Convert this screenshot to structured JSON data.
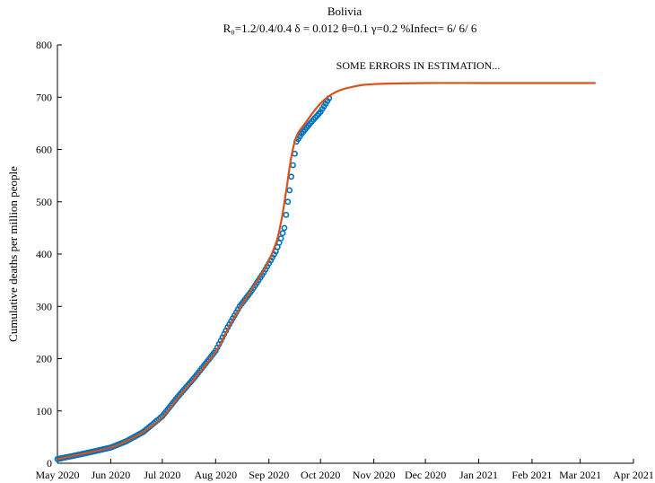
{
  "chart_data": {
    "type": "scatter",
    "title": "Bolivia",
    "subtitle": "R₀=1.2/0.4/0.4  δ = 0.012  θ=0.1  γ=0.2  %Infect= 6/ 6/ 6",
    "annotation": "SOME ERRORS IN ESTIMATION...",
    "xlabel": "",
    "ylabel": "Cumulative deaths per million people",
    "xlim": [
      "2020-05-01",
      "2021-04-01"
    ],
    "ylim": [
      0,
      800
    ],
    "x_ticks": [
      "May 2020",
      "Jun 2020",
      "Jul 2020",
      "Aug 2020",
      "Sep 2020",
      "Oct 2020",
      "Nov 2020",
      "Dec 2020",
      "Jan 2021",
      "Feb 2021",
      "Mar 2021",
      "Apr 2021"
    ],
    "y_ticks": [
      0,
      100,
      200,
      300,
      400,
      500,
      600,
      700,
      800
    ],
    "grid": false,
    "series": [
      {
        "kind": "observed",
        "style": "circle-markers",
        "color": "#0072BD",
        "points": [
          [
            "2020-05-01",
            8
          ],
          [
            "2020-05-10",
            14
          ],
          [
            "2020-05-20",
            21
          ],
          [
            "2020-06-01",
            30
          ],
          [
            "2020-06-10",
            42
          ],
          [
            "2020-06-20",
            60
          ],
          [
            "2020-07-01",
            90
          ],
          [
            "2020-07-10",
            127
          ],
          [
            "2020-07-20",
            165
          ],
          [
            "2020-08-01",
            215
          ],
          [
            "2020-08-08",
            260
          ],
          [
            "2020-08-15",
            300
          ],
          [
            "2020-08-22",
            330
          ],
          [
            "2020-08-29",
            365
          ],
          [
            "2020-09-05",
            405
          ],
          [
            "2020-09-08",
            430
          ],
          [
            "2020-09-10",
            450
          ],
          [
            "2020-09-11",
            475
          ],
          [
            "2020-09-12",
            500
          ],
          [
            "2020-09-13",
            522
          ],
          [
            "2020-09-14",
            548
          ],
          [
            "2020-09-15",
            570
          ],
          [
            "2020-09-16",
            592
          ],
          [
            "2020-09-17",
            615
          ],
          [
            "2020-09-20",
            630
          ],
          [
            "2020-09-25",
            650
          ],
          [
            "2020-10-01",
            672
          ],
          [
            "2020-10-06",
            698
          ]
        ]
      },
      {
        "kind": "model",
        "style": "line",
        "color": "#D95319",
        "points": [
          [
            "2020-05-01",
            8
          ],
          [
            "2020-05-10",
            14
          ],
          [
            "2020-05-20",
            21
          ],
          [
            "2020-06-01",
            30
          ],
          [
            "2020-06-10",
            42
          ],
          [
            "2020-06-20",
            60
          ],
          [
            "2020-07-01",
            88
          ],
          [
            "2020-07-10",
            125
          ],
          [
            "2020-07-20",
            163
          ],
          [
            "2020-08-01",
            213
          ],
          [
            "2020-08-10",
            268
          ],
          [
            "2020-08-20",
            322
          ],
          [
            "2020-08-30",
            375
          ],
          [
            "2020-09-05",
            420
          ],
          [
            "2020-09-08",
            460
          ],
          [
            "2020-09-11",
            520
          ],
          [
            "2020-09-14",
            585
          ],
          [
            "2020-09-17",
            625
          ],
          [
            "2020-09-22",
            650
          ],
          [
            "2020-10-01",
            688
          ],
          [
            "2020-10-10",
            710
          ],
          [
            "2020-10-20",
            720
          ],
          [
            "2020-11-01",
            725
          ],
          [
            "2020-12-01",
            727
          ],
          [
            "2021-01-01",
            727
          ],
          [
            "2021-02-01",
            727
          ],
          [
            "2021-03-10",
            727
          ]
        ]
      }
    ]
  }
}
